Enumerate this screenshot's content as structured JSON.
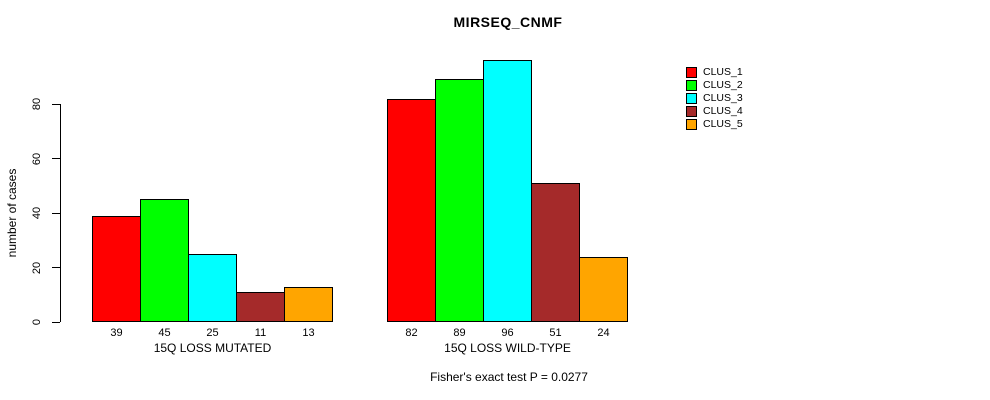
{
  "chart": {
    "title": "MIRSEQ_CNMF",
    "footer": "Fisher's exact test P = 0.0277",
    "ylabel": "number of cases"
  },
  "chart_data": {
    "type": "bar",
    "title": "MIRSEQ_CNMF",
    "ylabel": "number of cases",
    "xlabel": "",
    "categories": [
      "15Q LOSS MUTATED",
      "15Q LOSS WILD-TYPE"
    ],
    "series": [
      {
        "name": "CLUS_1",
        "color": "#ff0000",
        "values": [
          39,
          82
        ]
      },
      {
        "name": "CLUS_2",
        "color": "#00ff00",
        "values": [
          45,
          89
        ]
      },
      {
        "name": "CLUS_3",
        "color": "#00ffff",
        "values": [
          25,
          96
        ]
      },
      {
        "name": "CLUS_4",
        "color": "#a52a2a",
        "values": [
          11,
          51
        ]
      },
      {
        "name": "CLUS_5",
        "color": "#ffa500",
        "values": [
          13,
          24
        ]
      }
    ],
    "yticks": [
      0,
      20,
      40,
      60,
      80
    ],
    "ylim": [
      0,
      96
    ],
    "grid": false,
    "legend_position": "right",
    "bar_value_labels_shown": true,
    "annotation": "Fisher's exact test P = 0.0277",
    "axis_color": "#000000",
    "background_color": "#ffffff"
  }
}
